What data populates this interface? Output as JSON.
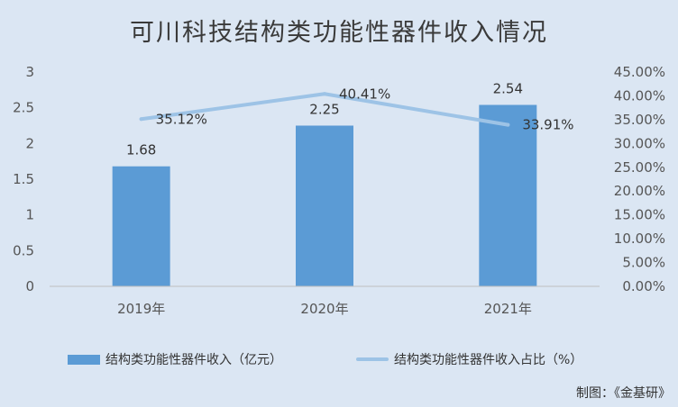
{
  "chart_data": {
    "type": "bar",
    "title": "可川科技结构类功能性器件收入情况",
    "categories": [
      "2019年",
      "2020年",
      "2021年"
    ],
    "series": [
      {
        "name": "结构类功能性器件收入（亿元）",
        "type": "bar",
        "axis": "left",
        "values": [
          1.68,
          2.25,
          2.54
        ],
        "labels": [
          "1.68",
          "2.25",
          "2.54"
        ],
        "color": "#5b9bd5"
      },
      {
        "name": "结构类功能性器件收入占比（%）",
        "type": "line",
        "axis": "right",
        "values": [
          35.12,
          40.41,
          33.91
        ],
        "labels": [
          "35.12%",
          "40.41%",
          "33.91%"
        ],
        "color": "#9dc3e6"
      }
    ],
    "y_left": {
      "ylim": [
        0,
        3
      ],
      "ticks": [
        "0",
        "0.5",
        "1",
        "1.5",
        "2",
        "2.5",
        "3"
      ]
    },
    "y_right": {
      "ylim": [
        0,
        45
      ],
      "ticks": [
        "0.00%",
        "5.00%",
        "10.00%",
        "15.00%",
        "20.00%",
        "25.00%",
        "30.00%",
        "35.00%",
        "40.00%",
        "45.00%"
      ]
    },
    "legend_position": "bottom",
    "grid": false
  },
  "source_note": "制图：《金基研》"
}
